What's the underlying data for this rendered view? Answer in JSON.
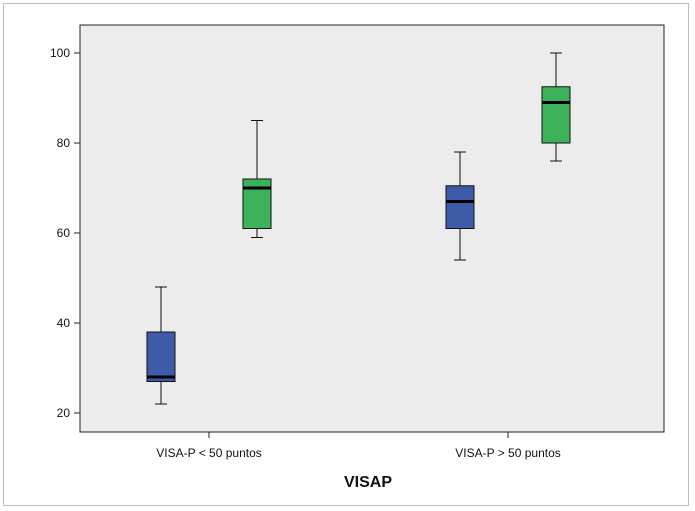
{
  "chart_data": {
    "type": "boxplot",
    "title": "",
    "xlabel": "VISAP",
    "ylabel": "",
    "ylim": [
      15,
      105
    ],
    "yticks": [
      "20",
      "40",
      "60",
      "80",
      "100"
    ],
    "grid": false,
    "categories": [
      "VISA-P < 50 puntos",
      "VISA-P > 50 puntos"
    ],
    "series": [
      {
        "color": "#3d5ba9",
        "boxes": [
          {
            "min": 22,
            "q1": 27,
            "median": 28,
            "q3": 38,
            "max": 48
          },
          {
            "min": 54,
            "q1": 61,
            "median": 67,
            "q3": 70.5,
            "max": 78
          }
        ]
      },
      {
        "color": "#3cb35a",
        "boxes": [
          {
            "min": 59,
            "q1": 61,
            "median": 70,
            "q3": 72,
            "max": 85
          },
          {
            "min": 76,
            "q1": 80,
            "median": 89,
            "q3": 92.5,
            "max": 100
          }
        ]
      }
    ],
    "plot_background": "#ececec"
  }
}
